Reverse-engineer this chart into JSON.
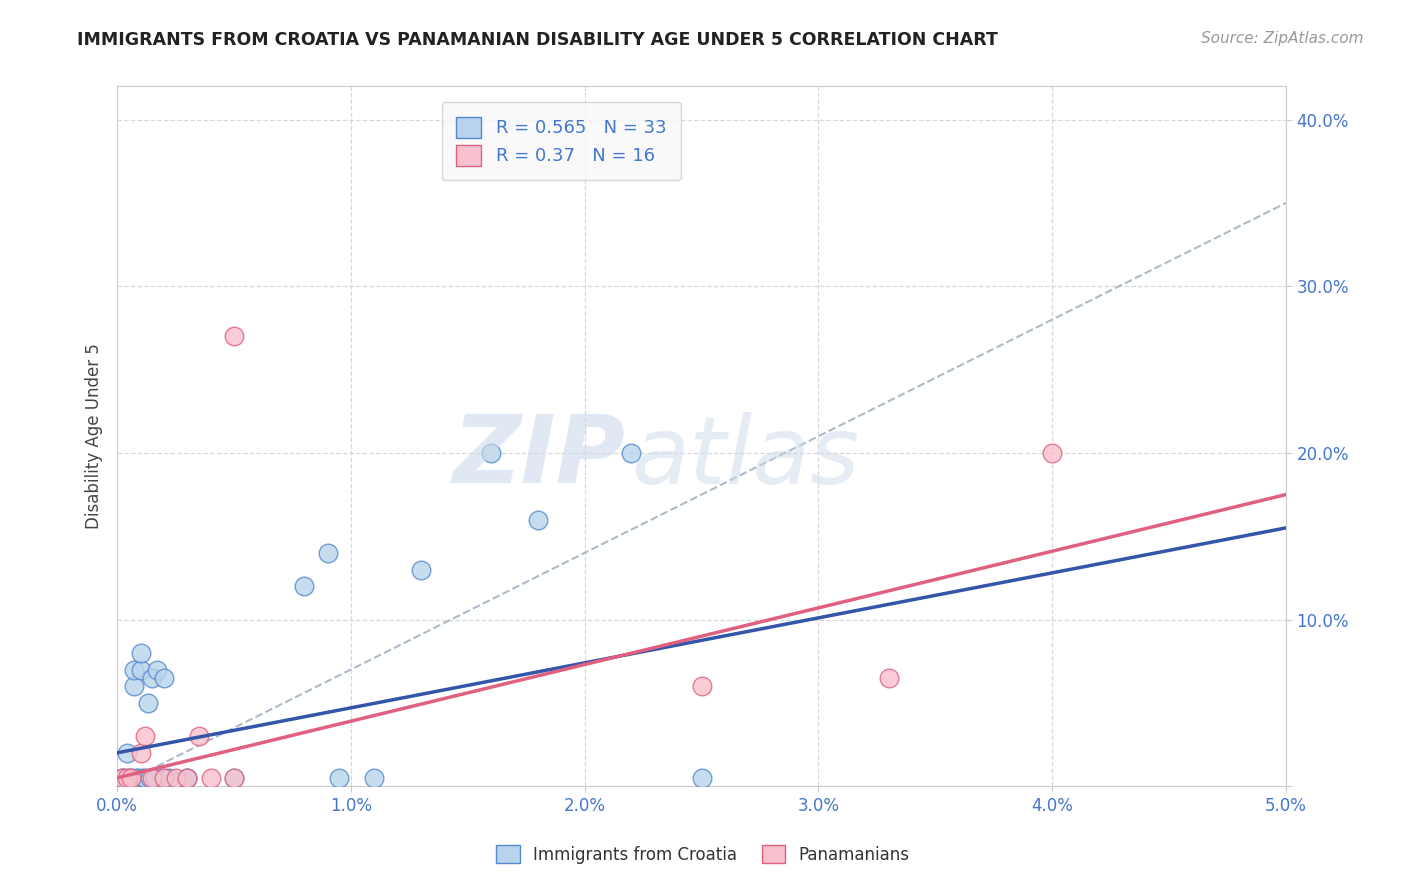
{
  "title": "IMMIGRANTS FROM CROATIA VS PANAMANIAN DISABILITY AGE UNDER 5 CORRELATION CHART",
  "source": "Source: ZipAtlas.com",
  "ylabel": "Disability Age Under 5",
  "xlim": [
    0.0,
    0.05
  ],
  "ylim": [
    0.0,
    0.42
  ],
  "xticks": [
    0.0,
    0.01,
    0.02,
    0.03,
    0.04,
    0.05
  ],
  "xticklabels": [
    "0.0%",
    "1.0%",
    "2.0%",
    "3.0%",
    "4.0%",
    "5.0%"
  ],
  "yticks": [
    0.0,
    0.1,
    0.2,
    0.3,
    0.4
  ],
  "yticklabels": [
    "",
    "10.0%",
    "20.0%",
    "30.0%",
    "40.0%"
  ],
  "background_color": "#ffffff",
  "grid_color": "#d8d8d8",
  "croatia_color": "#b8d4ec",
  "croatia_edge": "#5588cc",
  "panama_color": "#f8c0cc",
  "panama_edge": "#e06080",
  "R_croatia": 0.565,
  "N_croatia": 33,
  "R_panama": 0.37,
  "N_panama": 16,
  "croatia_line_color": "#3355aa",
  "panama_line_color": "#e06080",
  "dashed_line_color": "#aabbcc",
  "croatia_scatter_x": [
    0.0002,
    0.0003,
    0.0004,
    0.0005,
    0.0006,
    0.0007,
    0.0007,
    0.0008,
    0.0009,
    0.001,
    0.001,
    0.0011,
    0.0012,
    0.0013,
    0.0014,
    0.0015,
    0.0016,
    0.0017,
    0.002,
    0.002,
    0.0022,
    0.003,
    0.003,
    0.005,
    0.008,
    0.009,
    0.0095,
    0.011,
    0.013,
    0.016,
    0.018,
    0.022,
    0.025
  ],
  "croatia_scatter_y": [
    0.005,
    0.005,
    0.02,
    0.005,
    0.005,
    0.06,
    0.07,
    0.005,
    0.005,
    0.07,
    0.08,
    0.005,
    0.005,
    0.05,
    0.005,
    0.065,
    0.005,
    0.07,
    0.065,
    0.005,
    0.005,
    0.005,
    0.005,
    0.005,
    0.12,
    0.14,
    0.005,
    0.005,
    0.13,
    0.2,
    0.16,
    0.2,
    0.005
  ],
  "panama_scatter_x": [
    0.0002,
    0.0004,
    0.0006,
    0.001,
    0.0012,
    0.0015,
    0.002,
    0.0025,
    0.003,
    0.0035,
    0.004,
    0.005,
    0.005,
    0.025,
    0.033,
    0.04
  ],
  "panama_scatter_y": [
    0.005,
    0.005,
    0.005,
    0.02,
    0.03,
    0.005,
    0.005,
    0.005,
    0.005,
    0.03,
    0.005,
    0.005,
    0.27,
    0.06,
    0.065,
    0.2
  ],
  "blue_line_x0": 0.0,
  "blue_line_y0": 0.02,
  "blue_line_x1": 0.05,
  "blue_line_y1": 0.155,
  "pink_line_x0": 0.0,
  "pink_line_y0": 0.005,
  "pink_line_x1": 0.05,
  "pink_line_y1": 0.175,
  "dash_line_x0": 0.0,
  "dash_line_y0": 0.0,
  "dash_line_x1": 0.05,
  "dash_line_y1": 0.35
}
